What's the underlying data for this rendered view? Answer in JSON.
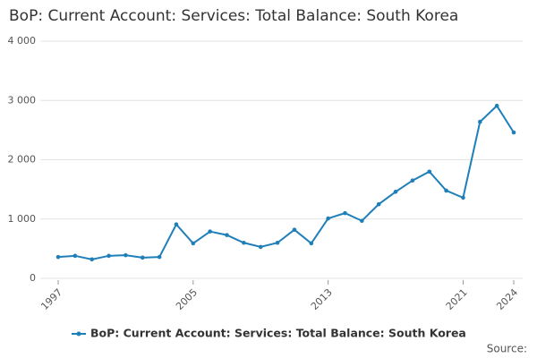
{
  "chart_data": {
    "type": "line",
    "title": "BoP: Current Account: Services: Total Balance: South Korea",
    "x": [
      1997,
      1998,
      1999,
      2000,
      2001,
      2002,
      2003,
      2004,
      2005,
      2006,
      2007,
      2008,
      2009,
      2010,
      2011,
      2012,
      2013,
      2014,
      2015,
      2016,
      2017,
      2018,
      2019,
      2020,
      2021,
      2022,
      2023,
      2024
    ],
    "series": [
      {
        "name": "BoP: Current Account: Services: Total Balance: South Korea",
        "color": "#1f7fb8",
        "values": [
          360,
          380,
          320,
          380,
          390,
          350,
          360,
          910,
          590,
          790,
          730,
          600,
          530,
          600,
          820,
          590,
          1010,
          1100,
          970,
          1250,
          1460,
          1650,
          1800,
          1480,
          1360,
          2640,
          2910,
          2460
        ]
      }
    ],
    "xlim": [
      1997,
      2024
    ],
    "xticks": [
      1997,
      2005,
      2013,
      2021,
      2024
    ],
    "ylim": [
      0,
      4000
    ],
    "yticks": [
      0,
      {
        "value": 1000,
        "label": "1 000"
      },
      {
        "value": 2000,
        "label": "2 000"
      },
      {
        "value": 3000,
        "label": "3 000"
      },
      {
        "value": 4000,
        "label": "4 000"
      }
    ],
    "grid": true,
    "legend": "bottom",
    "source": "Source:"
  }
}
